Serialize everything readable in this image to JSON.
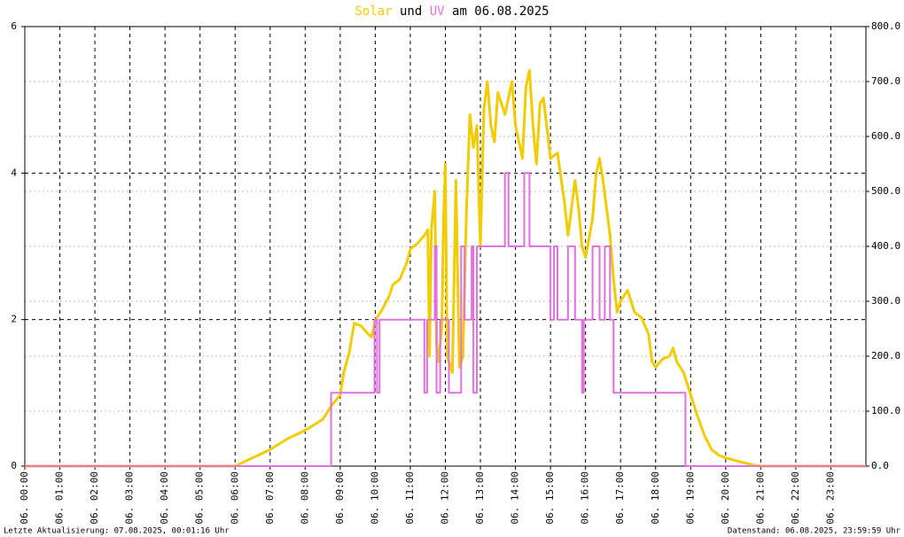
{
  "chart_data": {
    "type": "line",
    "title_join": "und",
    "title_tail": "am 06.08.2025",
    "footer_left": "Letzte Aktualisierung: 07.08.2025, 00:01:16 Uhr",
    "footer_right": "Datenstand: 06.08.2025, 23:59:59 Uhr",
    "xlim": [
      0,
      24
    ],
    "xticks": [
      {
        "value": 0,
        "label": "06. 00:00"
      },
      {
        "value": 1,
        "label": "06. 01:00"
      },
      {
        "value": 2,
        "label": "06. 02:00"
      },
      {
        "value": 3,
        "label": "06. 03:00"
      },
      {
        "value": 4,
        "label": "06. 04:00"
      },
      {
        "value": 5,
        "label": "06. 05:00"
      },
      {
        "value": 6,
        "label": "06. 06:00"
      },
      {
        "value": 7,
        "label": "06. 07:00"
      },
      {
        "value": 8,
        "label": "06. 08:00"
      },
      {
        "value": 9,
        "label": "06. 09:00"
      },
      {
        "value": 10,
        "label": "06. 10:00"
      },
      {
        "value": 11,
        "label": "06. 11:00"
      },
      {
        "value": 12,
        "label": "06. 12:00"
      },
      {
        "value": 13,
        "label": "06. 13:00"
      },
      {
        "value": 14,
        "label": "06. 14:00"
      },
      {
        "value": 15,
        "label": "06. 15:00"
      },
      {
        "value": 16,
        "label": "06. 16:00"
      },
      {
        "value": 17,
        "label": "06. 17:00"
      },
      {
        "value": 18,
        "label": "06. 18:00"
      },
      {
        "value": 19,
        "label": "06. 19:00"
      },
      {
        "value": 20,
        "label": "06. 20:00"
      },
      {
        "value": 21,
        "label": "06. 21:00"
      },
      {
        "value": 22,
        "label": "06. 22:00"
      },
      {
        "value": 23,
        "label": "06. 23:00"
      }
    ],
    "ylim": [
      0,
      6
    ],
    "yticks": [
      0,
      2,
      4,
      6
    ],
    "y2lim": [
      0,
      800
    ],
    "y2ticks": [
      {
        "value": 0,
        "label": "0.0"
      },
      {
        "value": 100,
        "label": "100.0"
      },
      {
        "value": 200,
        "label": "200.0"
      },
      {
        "value": 300,
        "label": "300.0"
      },
      {
        "value": 400,
        "label": "400.0"
      },
      {
        "value": 500,
        "label": "500.0"
      },
      {
        "value": 600,
        "label": "600.0"
      },
      {
        "value": 700,
        "label": "700.0"
      },
      {
        "value": 800,
        "label": "800.0"
      }
    ],
    "grid": true,
    "series": [
      {
        "name": "Solar",
        "color": "#f2cc00",
        "axis": "y2",
        "x": [
          0,
          6,
          6.5,
          7,
          7.5,
          8,
          8.5,
          8.75,
          9,
          9.1,
          9.25,
          9.4,
          9.6,
          9.8,
          9.9,
          10,
          10.2,
          10.4,
          10.5,
          10.7,
          10.9,
          11,
          11.2,
          11.4,
          11.5,
          11.55,
          11.6,
          11.7,
          11.75,
          11.8,
          11.9,
          11.95,
          12,
          12.05,
          12.2,
          12.3,
          12.4,
          12.5,
          12.6,
          12.7,
          12.8,
          12.9,
          13,
          13.1,
          13.2,
          13.3,
          13.4,
          13.5,
          13.7,
          13.9,
          14,
          14.2,
          14.3,
          14.4,
          14.5,
          14.6,
          14.7,
          14.8,
          15,
          15.2,
          15.4,
          15.5,
          15.6,
          15.7,
          15.8,
          15.9,
          16,
          16.2,
          16.3,
          16.4,
          16.5,
          16.7,
          16.8,
          16.9,
          17,
          17.2,
          17.4,
          17.6,
          17.8,
          17.9,
          18,
          18.2,
          18.4,
          18.5,
          18.6,
          18.8,
          19,
          19.2,
          19.4,
          19.6,
          19.8,
          20,
          20.4,
          20.8,
          21,
          24
        ],
        "values": [
          0,
          0,
          15,
          30,
          50,
          65,
          85,
          110,
          130,
          170,
          205,
          260,
          255,
          240,
          235,
          265,
          285,
          310,
          330,
          340,
          370,
          395,
          405,
          420,
          430,
          200,
          430,
          500,
          220,
          190,
          250,
          450,
          550,
          200,
          170,
          520,
          180,
          200,
          460,
          640,
          580,
          620,
          400,
          650,
          700,
          620,
          590,
          680,
          640,
          700,
          620,
          560,
          690,
          720,
          620,
          550,
          660,
          670,
          560,
          570,
          480,
          420,
          470,
          520,
          470,
          400,
          380,
          450,
          530,
          560,
          520,
          420,
          340,
          280,
          300,
          320,
          280,
          270,
          240,
          190,
          180,
          195,
          200,
          215,
          190,
          170,
          130,
          90,
          55,
          30,
          20,
          15,
          8,
          2,
          0,
          0
        ]
      },
      {
        "name": "UV",
        "color": "#e070e0",
        "axis": "y",
        "x": [
          0,
          8.74,
          8.74,
          9.98,
          9.98,
          10.05,
          10.05,
          10.12,
          10.12,
          11.4,
          11.4,
          11.48,
          11.48,
          11.7,
          11.7,
          11.75,
          11.75,
          11.85,
          11.85,
          12.1,
          12.1,
          12.45,
          12.45,
          12.55,
          12.55,
          12.75,
          12.75,
          12.8,
          12.8,
          12.9,
          12.9,
          13.7,
          13.7,
          13.8,
          13.8,
          14.25,
          14.25,
          14.4,
          14.4,
          15,
          15,
          15.1,
          15.1,
          15.2,
          15.2,
          15.5,
          15.5,
          15.7,
          15.7,
          15.9,
          15.9,
          15.95,
          15.95,
          16.2,
          16.2,
          16.4,
          16.4,
          16.55,
          16.55,
          16.7,
          16.7,
          16.8,
          16.8,
          18.85,
          18.85,
          24
        ],
        "values": [
          0,
          0,
          1,
          1,
          2,
          2,
          1,
          1,
          2,
          2,
          1,
          1,
          2,
          2,
          3,
          3,
          1,
          1,
          2,
          2,
          1,
          1,
          3,
          3,
          2,
          2,
          3,
          3,
          1,
          1,
          3,
          3,
          4,
          4,
          3,
          3,
          4,
          4,
          3,
          3,
          2,
          2,
          3,
          3,
          2,
          2,
          3,
          3,
          2,
          2,
          1,
          1,
          2,
          2,
          3,
          3,
          2,
          2,
          3,
          3,
          2,
          2,
          1,
          1,
          0,
          0
        ]
      }
    ]
  }
}
